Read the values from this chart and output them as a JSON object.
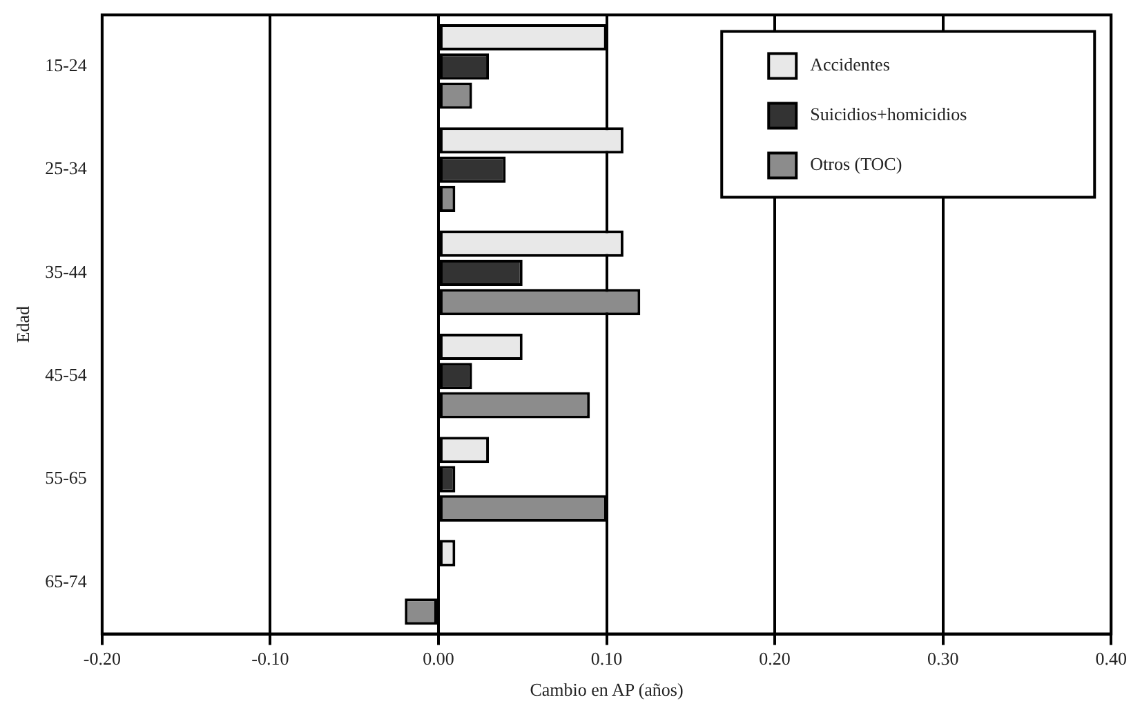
{
  "chart_data": {
    "type": "bar",
    "orientation": "horizontal",
    "xlabel": "Cambio en AP (años)",
    "ylabel": "Edad",
    "categories": [
      "15-24",
      "25-34",
      "35-44",
      "45-54",
      "55-65",
      "65-74"
    ],
    "series": [
      {
        "name": "Accidentes",
        "color": "#e8e8e8",
        "values": [
          0.1,
          0.11,
          0.11,
          0.05,
          0.03,
          0.01
        ]
      },
      {
        "name": "Suicidios+homicidios",
        "color": "#333333",
        "values": [
          0.03,
          0.04,
          0.05,
          0.02,
          0.01,
          null
        ]
      },
      {
        "name": "Otros (TOC)",
        "color": "#8c8c8c",
        "values": [
          0.02,
          0.01,
          0.12,
          0.09,
          0.1,
          -0.02
        ]
      }
    ],
    "xlim": [
      -0.2,
      0.4
    ],
    "xticks": [
      {
        "value": -0.2,
        "label": "-0.20"
      },
      {
        "value": -0.1,
        "label": "-0.10"
      },
      {
        "value": 0,
        "label": "0.00"
      },
      {
        "value": 0.1,
        "label": "0.10"
      },
      {
        "value": 0.2,
        "label": "0.20"
      },
      {
        "value": 0.3,
        "label": "0.30"
      },
      {
        "value": 0.4,
        "label": "0.40"
      }
    ],
    "grid": "x",
    "legend": "top right"
  }
}
